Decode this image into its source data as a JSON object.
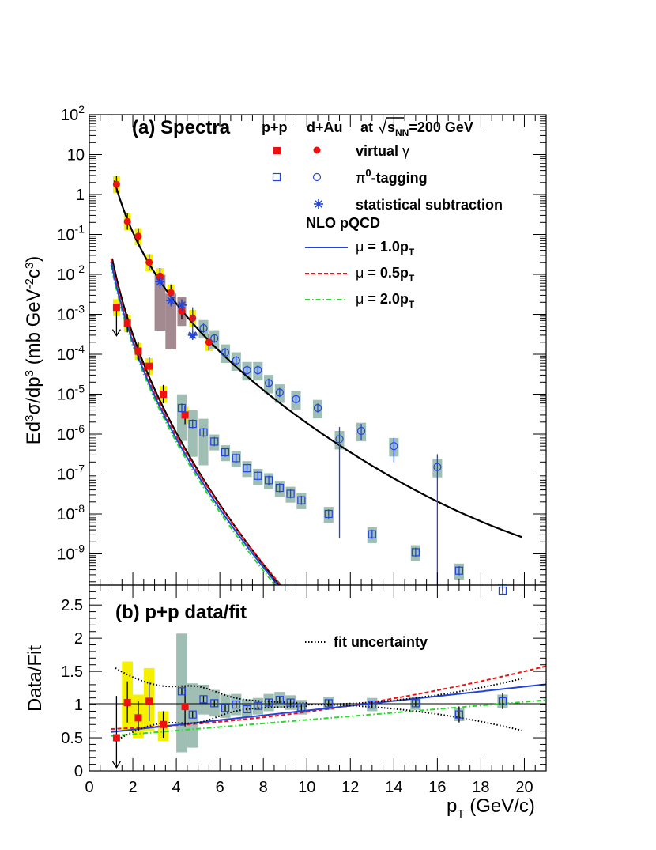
{
  "chart_data": [
    {
      "panel": "a",
      "type": "scatter",
      "title": "(a) Spectra",
      "header": {
        "pp": "p+p",
        "dau": "d+Au",
        "energy_pre": "at",
        "energy_sqrt": "s",
        "energy_sub": "NN",
        "energy_post": "=200 GeV"
      },
      "legend": {
        "virtual": "virtual",
        "virtual_sym": "γ",
        "pi0_sym": "π",
        "pi0_sup": "0",
        "pi0_text": "-tagging",
        "stat": "statistical subtraction",
        "nlo": "NLO pQCD",
        "mu_sym": "μ",
        "mu1": " = 1.0p",
        "mu05": " = 0.5p",
        "mu2": " = 2.0p",
        "mu_sub": "T"
      },
      "ylabel": {
        "p1": "Ed",
        "s1": "3",
        "p2": "σ/dp",
        "s2": "3",
        "p3": " (mb GeV",
        "s3": "-2",
        "p4": "c",
        "s4": "3",
        "p5": ")"
      },
      "xlim": [
        0,
        21
      ],
      "ylim": [
        2e-10,
        100
      ],
      "log_y": true,
      "y_ticks": [
        {
          "base": "10",
          "exp": "2"
        },
        {
          "base": "10",
          "exp": ""
        },
        {
          "base": "1",
          "exp": ""
        },
        {
          "base": "10",
          "exp": "-1"
        },
        {
          "base": "10",
          "exp": "-2"
        },
        {
          "base": "10",
          "exp": "-3"
        },
        {
          "base": "10",
          "exp": "-4"
        },
        {
          "base": "10",
          "exp": "-5"
        },
        {
          "base": "10",
          "exp": "-6"
        },
        {
          "base": "10",
          "exp": "-7"
        },
        {
          "base": "10",
          "exp": "-8"
        },
        {
          "base": "10",
          "exp": "-9"
        }
      ],
      "colors": {
        "red": "#ee1111",
        "blue": "#2244dd",
        "green": "#22dd22",
        "black": "#000000",
        "yellow_band": "#f4f000",
        "grey_band": "#9fbfb4",
        "brown_band": "#a28a90"
      },
      "series": [
        {
          "name": "p+p virtual γ",
          "marker": "filled-square",
          "color": "#ee1111",
          "points": [
            [
              1.25,
              0.0015
            ],
            [
              1.75,
              0.0006
            ],
            [
              2.25,
              0.00012
            ],
            [
              2.75,
              5e-05
            ],
            [
              3.4,
              1e-05
            ],
            [
              4.4,
              3e-06
            ]
          ]
        },
        {
          "name": "d+Au virtual γ",
          "marker": "filled-circle",
          "color": "#ee1111",
          "points": [
            [
              1.25,
              1.8
            ],
            [
              1.75,
              0.21
            ],
            [
              2.25,
              0.09
            ],
            [
              2.75,
              0.02
            ],
            [
              3.25,
              0.009
            ],
            [
              3.75,
              0.0035
            ],
            [
              4.25,
              0.0012
            ],
            [
              4.75,
              0.0008
            ],
            [
              5.5,
              0.0002
            ]
          ]
        },
        {
          "name": "p+p π0-tagging",
          "marker": "open-square",
          "color": "#2244dd",
          "points": [
            [
              4.25,
              4.5e-06
            ],
            [
              4.75,
              1.8e-06
            ],
            [
              5.25,
              1.1e-06
            ],
            [
              5.75,
              6.5e-07
            ],
            [
              6.25,
              3.5e-07
            ],
            [
              6.75,
              2.5e-07
            ],
            [
              7.25,
              1.4e-07
            ],
            [
              7.75,
              9e-08
            ],
            [
              8.25,
              7e-08
            ],
            [
              8.75,
              4.5e-08
            ],
            [
              9.25,
              3.2e-08
            ],
            [
              9.75,
              2.2e-08
            ],
            [
              11,
              1e-08
            ],
            [
              13,
              3.1e-09
            ],
            [
              15,
              1.1e-09
            ],
            [
              17,
              3.8e-10
            ],
            [
              19,
              1.2e-10
            ]
          ]
        },
        {
          "name": "d+Au π0-tagging",
          "marker": "open-circle",
          "color": "#2244dd",
          "points": [
            [
              5.25,
              0.00045
            ],
            [
              5.75,
              0.00025
            ],
            [
              6.25,
              0.00011
            ],
            [
              6.75,
              7e-05
            ],
            [
              7.25,
              4e-05
            ],
            [
              7.75,
              4e-05
            ],
            [
              8.25,
              1.9e-05
            ],
            [
              8.75,
              1.1e-05
            ],
            [
              9.5,
              7.5e-06
            ],
            [
              10.5,
              4.5e-06
            ],
            [
              11.5,
              7.5e-07
            ],
            [
              12.5,
              1.2e-06
            ],
            [
              14,
              5e-07
            ],
            [
              16,
              1.5e-07
            ]
          ]
        },
        {
          "name": "statistical subtraction",
          "marker": "star",
          "color": "#2244dd",
          "points": [
            [
              3.25,
              0.0065
            ],
            [
              3.75,
              0.0022
            ],
            [
              4.25,
              0.0017
            ],
            [
              4.75,
              0.0003
            ]
          ]
        }
      ],
      "curves": [
        {
          "name": "d+Au fit",
          "color": "#000000",
          "style": "solid"
        },
        {
          "name": "p+p fit",
          "color": "#000000",
          "style": "solid"
        },
        {
          "name": "μ = 1.0pT",
          "color": "#2244dd",
          "style": "solid"
        },
        {
          "name": "μ = 0.5pT",
          "color": "#ee1111",
          "style": "dashed"
        },
        {
          "name": "μ = 2.0pT",
          "color": "#22dd22",
          "style": "dash-dot"
        }
      ]
    },
    {
      "panel": "b",
      "type": "scatter",
      "title": "(b) p+p data/fit",
      "ylabel": "Data/Fit",
      "xlabel_main": "p",
      "xlabel_sub": "T",
      "xlabel_unit": " (GeV/c)",
      "xlim": [
        0,
        21
      ],
      "ylim": [
        0,
        2.8
      ],
      "x_ticks": [
        "0",
        "2",
        "4",
        "6",
        "8",
        "10",
        "12",
        "14",
        "16",
        "18",
        "20"
      ],
      "y_ticks": [
        "0",
        "0.5",
        "1",
        "1.5",
        "2",
        "2.5"
      ],
      "legend": {
        "fit_uncertainty": "fit uncertainty"
      },
      "series": [
        {
          "name": "p+p virtual γ ratio",
          "marker": "filled-square",
          "color": "#ee1111",
          "points": [
            [
              1.25,
              0.5
            ],
            [
              1.75,
              1.03
            ],
            [
              2.25,
              0.8
            ],
            [
              2.75,
              1.05
            ],
            [
              3.4,
              0.7
            ],
            [
              4.4,
              0.97
            ]
          ]
        },
        {
          "name": "p+p π0-tagging ratio",
          "marker": "open-square",
          "color": "#2244dd",
          "points": [
            [
              4.25,
              1.2
            ],
            [
              4.75,
              0.85
            ],
            [
              5.25,
              1.08
            ],
            [
              5.75,
              1.02
            ],
            [
              6.25,
              0.95
            ],
            [
              6.75,
              1.0
            ],
            [
              7.25,
              0.93
            ],
            [
              7.75,
              0.98
            ],
            [
              8.25,
              1.03
            ],
            [
              8.75,
              1.07
            ],
            [
              9.25,
              1.03
            ],
            [
              9.75,
              0.96
            ],
            [
              11,
              1.02
            ],
            [
              13,
              1.0
            ],
            [
              15,
              1.02
            ],
            [
              17,
              0.85
            ],
            [
              19,
              1.05
            ]
          ]
        }
      ],
      "curves": [
        {
          "name": "μ = 1.0pT ratio",
          "color": "#2244dd",
          "style": "solid"
        },
        {
          "name": "μ = 0.5pT ratio",
          "color": "#ee1111",
          "style": "dashed"
        },
        {
          "name": "μ = 2.0pT ratio",
          "color": "#22dd22",
          "style": "dash-dot"
        },
        {
          "name": "fit uncertainty",
          "color": "#000000",
          "style": "dotted"
        }
      ]
    }
  ]
}
